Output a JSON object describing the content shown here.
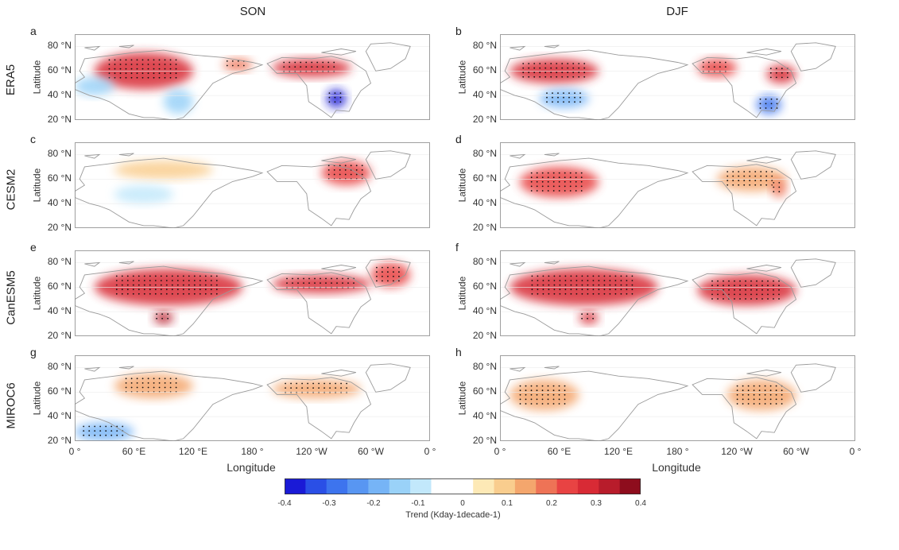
{
  "columns": [
    "SON",
    "DJF"
  ],
  "rows": [
    "ERA5",
    "CESM2",
    "CanESM5",
    "MIROC6"
  ],
  "panel_letters": [
    "a",
    "b",
    "c",
    "d",
    "e",
    "f",
    "g",
    "h"
  ],
  "axes": {
    "ylabel": "Latitude",
    "xlabel": "Longitude",
    "yticks": [
      "80 °N",
      "60 °N",
      "40 °N",
      "20 °N"
    ],
    "xticks": [
      "0 °",
      "60 °E",
      "120 °E",
      "180 °",
      "120 °W",
      "60 °W",
      "0 °"
    ]
  },
  "colorbar": {
    "ticks": [
      "-0.4",
      "-0.3",
      "-0.2",
      "-0.1",
      "0",
      "0.1",
      "0.2",
      "0.3",
      "0.4"
    ],
    "label": "Trend (Kday-1decade-1)",
    "colors": [
      "#1a1ad6",
      "#2a4fe6",
      "#3d74ee",
      "#5896f2",
      "#76b4f6",
      "#9ad2f8",
      "#c2e8fb",
      "#ffffff",
      "#ffffff",
      "#fde9b6",
      "#f9cd8e",
      "#f4a66d",
      "#ee7356",
      "#e84343",
      "#d82a35",
      "#b81c2b",
      "#8e0d1d"
    ]
  },
  "chart_data": {
    "type": "heatmap",
    "layout": "4x2 panel grid of gridded maps",
    "columns": [
      "SON",
      "DJF"
    ],
    "rows": [
      "ERA5",
      "CESM2",
      "CanESM5",
      "MIROC6"
    ],
    "xlabel": "Longitude",
    "ylabel": "Latitude",
    "xlim_deg_east": [
      0,
      360
    ],
    "ylim_deg_north": [
      20,
      90
    ],
    "colorbar_range": [
      -0.4,
      0.4
    ],
    "colorbar_label": "Trend (Kday-1decade-1)",
    "panels": [
      {
        "letter": "a",
        "row": "ERA5",
        "season": "SON",
        "features": [
          {
            "region": "Eurasia 45-75N, 20-120E",
            "trend": 0.3
          },
          {
            "region": "Europe 40-55N, 0-40E",
            "trend": -0.1
          },
          {
            "region": "East Asia 25-45N, 90-120E",
            "trend": -0.1
          },
          {
            "region": "Siberia 60-70N, 150-180E",
            "trend": 0.2
          },
          {
            "region": "N America 55-70N, 200-280E",
            "trend": 0.3
          },
          {
            "region": "Central US 30-45N, 255-275E",
            "trend": -0.35
          }
        ]
      },
      {
        "letter": "b",
        "row": "ERA5",
        "season": "DJF",
        "features": [
          {
            "region": "Eurasia 50-70N, 10-100E",
            "trend": 0.3
          },
          {
            "region": "Asia 30-45N, 40-90E",
            "trend": -0.15
          },
          {
            "region": "Alaska/Canada 55-70N, 200-240E",
            "trend": 0.25
          },
          {
            "region": "E Canada 50-65N, 270-300E",
            "trend": 0.3
          },
          {
            "region": "SE US 25-40N, 260-285E",
            "trend": -0.25
          }
        ]
      },
      {
        "letter": "c",
        "row": "CESM2",
        "season": "SON",
        "features": [
          {
            "region": "N Eurasia 60-75N, 40-140E",
            "trend": 0.1
          },
          {
            "region": "N Canada 55-75N, 250-300E",
            "trend": 0.25
          },
          {
            "region": "Central Asia 40-55N, 40-100E",
            "trend": -0.05
          }
        ]
      },
      {
        "letter": "d",
        "row": "CESM2",
        "season": "DJF",
        "features": [
          {
            "region": "E Europe/W Siberia 45-70N, 20-100E",
            "trend": 0.25
          },
          {
            "region": "Canada 50-70N, 220-290E",
            "trend": 0.15
          },
          {
            "region": "E Canada 45-60N, 275-290E",
            "trend": 0.2
          }
        ]
      },
      {
        "letter": "e",
        "row": "CanESM5",
        "season": "SON",
        "features": [
          {
            "region": "Eurasia 45-75N, 20-170E",
            "trend": 0.3
          },
          {
            "region": "Tibet 30-40N, 80-100E",
            "trend": 0.35
          },
          {
            "region": "N America 55-70N, 200-300E",
            "trend": 0.3
          },
          {
            "region": "Greenland coast 60-80N, 300-340E",
            "trend": 0.25
          }
        ]
      },
      {
        "letter": "f",
        "row": "CanESM5",
        "season": "DJF",
        "features": [
          {
            "region": "Eurasia 45-75N, 10-160E",
            "trend": 0.3
          },
          {
            "region": "Tibet 30-40N, 80-100E",
            "trend": 0.3
          },
          {
            "region": "N America 45-70N, 200-300E",
            "trend": 0.3
          }
        ]
      },
      {
        "letter": "g",
        "row": "MIROC6",
        "season": "SON",
        "features": [
          {
            "region": "N Eurasia 55-75N, 40-120E",
            "trend": 0.15
          },
          {
            "region": "N America 55-70N, 200-290E",
            "trend": 0.15
          },
          {
            "region": "S Asia/Africa 20-35N, 0-60E",
            "trend": -0.15
          }
        ]
      },
      {
        "letter": "h",
        "row": "MIROC6",
        "season": "DJF",
        "features": [
          {
            "region": "Europe 45-70N, 10-80E",
            "trend": 0.15
          },
          {
            "region": "Canada 45-70N, 230-300E",
            "trend": 0.15
          }
        ]
      }
    ]
  }
}
